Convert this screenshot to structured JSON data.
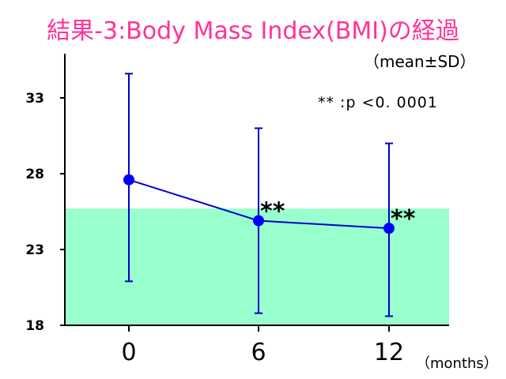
{
  "chart_data": {
    "type": "line",
    "title": "結果-3:Body Mass Index(BMI)の経過",
    "subtitle": "（mean±SD）",
    "annotation_note": "** :p <0. 0001",
    "x_unit_label": "（months）",
    "categories": [
      "0",
      "6",
      "12"
    ],
    "series": [
      {
        "values": [
          27.6,
          24.9,
          24.4
        ],
        "sd_low": [
          20.9,
          18.8,
          18.6
        ],
        "sd_high": [
          34.6,
          31.0,
          30.0
        ],
        "significance": [
          "",
          "**",
          "**"
        ]
      }
    ],
    "yticks": [
      "33",
      "28",
      "23",
      "18"
    ],
    "ytick_values": [
      33,
      28,
      23,
      18
    ],
    "ylim": [
      18,
      35.5
    ],
    "reference_band": {
      "from": 18,
      "to": 25.7,
      "color": "#99ffcc"
    },
    "colors": {
      "title": "#ff3399",
      "series": "#0000cc",
      "point": "#0000ff",
      "band": "#99ffcc"
    },
    "grid": false
  }
}
